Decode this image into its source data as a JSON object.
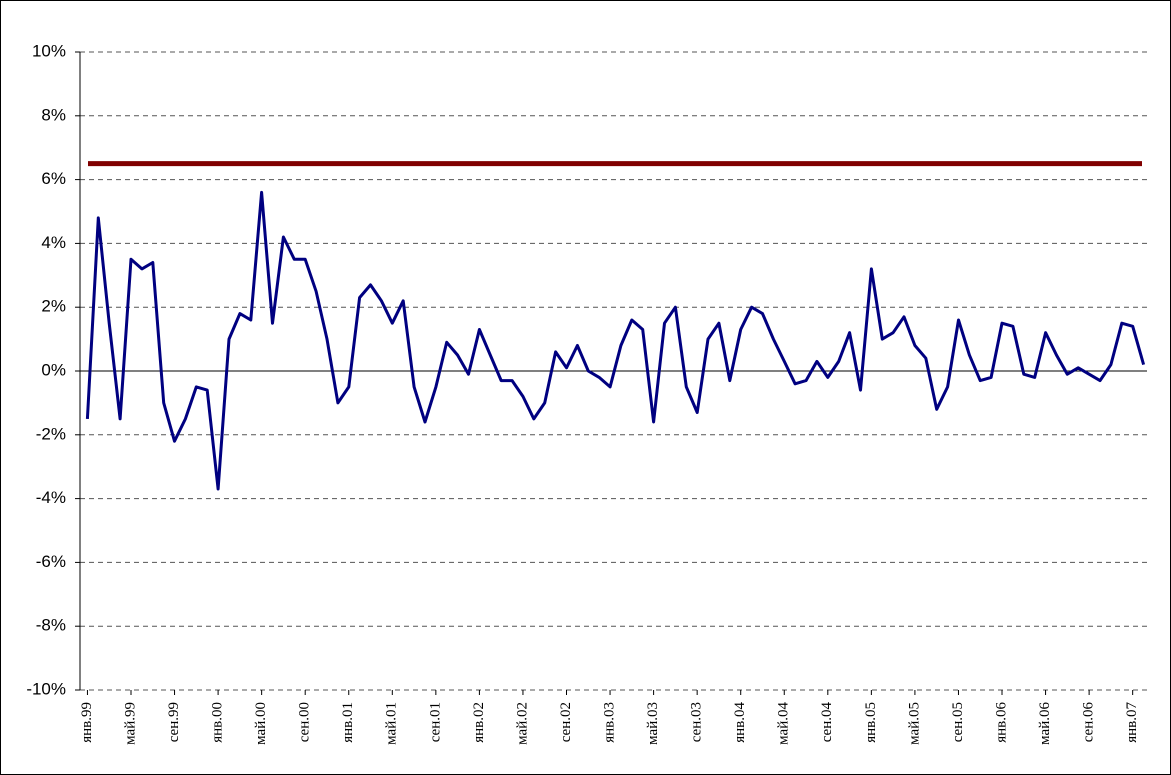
{
  "chart_data": {
    "type": "line",
    "categories": [
      "янв.99",
      null,
      null,
      null,
      "май.99",
      null,
      null,
      null,
      "сен.99",
      null,
      null,
      null,
      "янв.00",
      null,
      null,
      null,
      "май.00",
      null,
      null,
      null,
      "сен.00",
      null,
      null,
      null,
      "янв.01",
      null,
      null,
      null,
      "май.01",
      null,
      null,
      null,
      "сен.01",
      null,
      null,
      null,
      "янв.02",
      null,
      null,
      null,
      "май.02",
      null,
      null,
      null,
      "сен.02",
      null,
      null,
      null,
      "янв.03",
      null,
      null,
      null,
      "май.03",
      null,
      null,
      null,
      "сен.03",
      null,
      null,
      null,
      "янв.04",
      null,
      null,
      null,
      "май.04",
      null,
      null,
      null,
      "сен.04",
      null,
      null,
      null,
      "янв.05",
      null,
      null,
      null,
      "май.05",
      null,
      null,
      null,
      "сен.05",
      null,
      null,
      null,
      "янв.06",
      null,
      null,
      null,
      "май.06",
      null,
      null,
      null,
      "сен.06",
      null,
      null,
      null,
      "янв.07",
      null
    ],
    "series": [
      {
        "color": "#000080",
        "values": [
          -1.5,
          4.8,
          1.5,
          -1.5,
          3.5,
          3.2,
          3.4,
          -1.0,
          -2.2,
          -1.5,
          -0.5,
          -0.6,
          -3.7,
          1.0,
          1.8,
          1.6,
          5.6,
          1.5,
          4.2,
          3.5,
          3.5,
          2.5,
          1.0,
          -1.0,
          -0.5,
          2.3,
          2.7,
          2.2,
          1.5,
          2.2,
          -0.5,
          -1.6,
          -0.5,
          0.9,
          0.5,
          -0.1,
          1.3,
          0.5,
          -0.3,
          -0.3,
          -0.8,
          -1.5,
          -1.0,
          0.6,
          0.1,
          0.8,
          0.0,
          -0.2,
          -0.5,
          0.8,
          1.6,
          1.3,
          -1.6,
          1.5,
          2.0,
          -0.5,
          -1.3,
          1.0,
          1.5,
          -0.3,
          1.3,
          2.0,
          1.8,
          1.0,
          0.3,
          -0.4,
          -0.3,
          0.3,
          -0.2,
          0.3,
          1.2,
          -0.6,
          3.2,
          1.0,
          1.2,
          1.7,
          0.8,
          0.4,
          -1.2,
          -0.5,
          1.6,
          0.5,
          -0.3,
          -0.2,
          1.5,
          1.4,
          -0.1,
          -0.2,
          1.2,
          0.5,
          -0.1,
          0.1,
          -0.1,
          -0.3,
          0.2,
          1.5,
          1.4,
          0.2
        ]
      }
    ],
    "hline": {
      "value": 6.5,
      "color": "#800000"
    },
    "ylim": [
      -10,
      10
    ],
    "yticks": [
      {
        "value": -10,
        "label": "-10%"
      },
      {
        "value": -8,
        "label": "-8%"
      },
      {
        "value": -6,
        "label": "-6%"
      },
      {
        "value": -4,
        "label": "-4%"
      },
      {
        "value": -2,
        "label": "-2%"
      },
      {
        "value": 0,
        "label": "0%"
      },
      {
        "value": 2,
        "label": "2%"
      },
      {
        "value": 4,
        "label": "4%"
      },
      {
        "value": 6,
        "label": "6%"
      },
      {
        "value": 8,
        "label": "8%"
      },
      {
        "value": 10,
        "label": "10%"
      }
    ],
    "grid": true
  }
}
